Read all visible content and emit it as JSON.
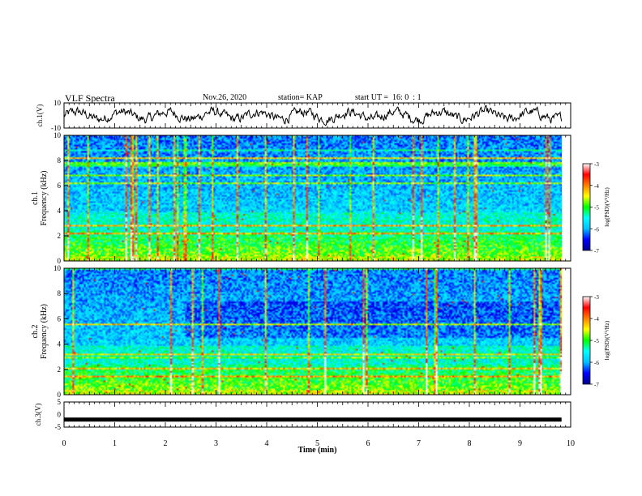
{
  "header": {
    "title": "VLF Spectra",
    "date": "Nov.26, 2020",
    "station": "station= KAP",
    "start_time": "start UT =  16: 0  : 1"
  },
  "chart_data": [
    {
      "type": "line",
      "name": "ch1-waveform",
      "ylabel": "ch.1(V)",
      "ylim": [
        -10,
        10
      ],
      "yticks": [
        "10",
        "-10"
      ],
      "xlim": [
        0,
        10
      ],
      "data_extent_min": 9.82,
      "description_of_trace": "noisy waveform centered near 0 V, amplitude roughly ±5 V"
    },
    {
      "type": "heatmap",
      "name": "ch1-spectrogram",
      "ylabel_line1": "ch.1",
      "ylabel_line2": "Frequency (kHz)",
      "ylim": [
        0,
        10
      ],
      "yticks": [
        "0",
        "2",
        "4",
        "6",
        "8",
        "10"
      ],
      "xlim": [
        0,
        10
      ],
      "colorbar": {
        "label": "log(PSD)(V²/Hz)",
        "ticks": [
          "-3",
          "-4",
          "-5",
          "-6",
          "-7"
        ],
        "range": [
          -7,
          -3
        ]
      }
    },
    {
      "type": "heatmap",
      "name": "ch2-spectrogram",
      "ylabel_line1": "ch.2",
      "ylabel_line2": "Frequency (kHz)",
      "ylim": [
        0,
        10
      ],
      "yticks": [
        "0",
        "2",
        "4",
        "6",
        "8",
        "10"
      ],
      "xlim": [
        0,
        10
      ],
      "colorbar": {
        "label": "log(PSD)(V²/Hz)",
        "ticks": [
          "-3",
          "-4",
          "-5",
          "-6",
          "-7"
        ],
        "range": [
          -7,
          -3
        ]
      }
    },
    {
      "type": "line",
      "name": "ch3-waveform",
      "ylabel": "ch.3(V)",
      "ylim": [
        -5,
        5
      ],
      "yticks": [
        "5",
        "0",
        "-5"
      ],
      "xlim": [
        0,
        10
      ],
      "data_extent_min": 9.82,
      "trace_level": -2
    }
  ],
  "x_axis": {
    "label": "Time (min)",
    "ticks": [
      "0",
      "1",
      "2",
      "3",
      "4",
      "5",
      "6",
      "7",
      "8",
      "9",
      "10"
    ]
  },
  "colors": {
    "trace": "#000000",
    "colormap": [
      "#00008b",
      "#0000ff",
      "#00bfff",
      "#00ffff",
      "#00ff00",
      "#ffff00",
      "#ff8000",
      "#ff0000",
      "#ffffff"
    ]
  }
}
